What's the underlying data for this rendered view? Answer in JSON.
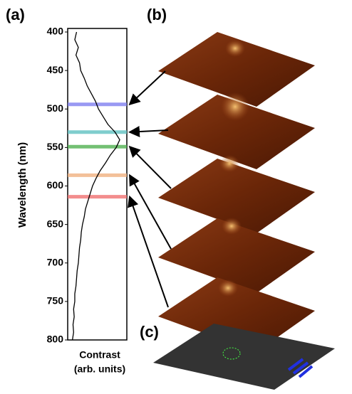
{
  "chart_data": {
    "type": "line",
    "orientation": "vertical",
    "panel_labels": [
      "(a)",
      "(b)",
      "(c)"
    ],
    "xlabel": "Wavelength (nm)",
    "ylabel": [
      "Contrast",
      "(arb. units)"
    ],
    "x": [
      400,
      410,
      420,
      430,
      440,
      450,
      460,
      470,
      480,
      490,
      500,
      510,
      520,
      530,
      540,
      550,
      560,
      570,
      580,
      590,
      600,
      610,
      620,
      630,
      640,
      650,
      660,
      670,
      680,
      690,
      700,
      710,
      720,
      730,
      740,
      750,
      760,
      770,
      780,
      790,
      800
    ],
    "xlim": [
      400,
      800
    ],
    "xticks": [
      400,
      450,
      500,
      550,
      600,
      650,
      700,
      750,
      800
    ],
    "ylim": [
      0,
      1
    ],
    "series": [
      {
        "color": "#000000",
        "values": [
          0.15,
          0.12,
          0.18,
          0.14,
          0.2,
          0.22,
          0.28,
          0.33,
          0.4,
          0.47,
          0.52,
          0.6,
          0.68,
          0.8,
          0.88,
          0.82,
          0.72,
          0.64,
          0.55,
          0.48,
          0.42,
          0.38,
          0.34,
          0.3,
          0.28,
          0.25,
          0.23,
          0.22,
          0.2,
          0.19,
          0.18,
          0.16,
          0.15,
          0.14,
          0.12,
          0.12,
          0.1,
          0.11,
          0.09,
          0.1,
          0.08
        ]
      }
    ],
    "bands": [
      {
        "value": 494,
        "color": "#8080f0"
      },
      {
        "value": 530,
        "color": "#60c0c0"
      },
      {
        "value": 549,
        "color": "#50b050"
      },
      {
        "value": 586,
        "color": "#f0b080"
      },
      {
        "value": 614,
        "color": "#f07070"
      }
    ]
  }
}
